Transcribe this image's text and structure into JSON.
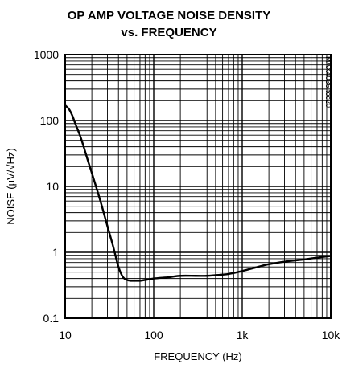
{
  "chart_data": {
    "type": "line",
    "title": "OP AMP VOLTAGE NOISE DENSITY",
    "subtitle": "vs. FREQUENCY",
    "xlabel": "FREQUENCY (Hz)",
    "ylabel": "NOISE (µV/√Hz)",
    "x_scale": "log",
    "y_scale": "log",
    "xlim": [
      10,
      10000
    ],
    "ylim": [
      0.1,
      1000
    ],
    "grid": true,
    "x_ticks": [
      {
        "value": 10,
        "label": "10"
      },
      {
        "value": 100,
        "label": "100"
      },
      {
        "value": 1000,
        "label": "1k"
      },
      {
        "value": 10000,
        "label": "10k"
      }
    ],
    "y_ticks": [
      {
        "value": 0.1,
        "label": "0.1"
      },
      {
        "value": 1,
        "label": "1"
      },
      {
        "value": 10,
        "label": "10"
      },
      {
        "value": 100,
        "label": "100"
      },
      {
        "value": 1000,
        "label": "1000"
      }
    ],
    "series": [
      {
        "x": [
          10,
          11,
          12,
          13,
          15,
          18,
          20,
          25,
          30,
          35,
          40,
          45,
          50,
          55,
          60,
          70,
          80,
          100,
          150,
          200,
          300,
          400,
          500,
          700,
          1000,
          1500,
          2000,
          3000,
          5000,
          7000,
          10000
        ],
        "y": [
          170,
          150,
          120,
          90,
          55,
          25,
          16,
          6,
          2.5,
          1.2,
          0.6,
          0.42,
          0.38,
          0.37,
          0.37,
          0.37,
          0.38,
          0.4,
          0.42,
          0.44,
          0.44,
          0.44,
          0.45,
          0.47,
          0.52,
          0.6,
          0.66,
          0.72,
          0.78,
          0.83,
          0.88
        ]
      }
    ],
    "annotation": "MAX4036 toc20"
  }
}
